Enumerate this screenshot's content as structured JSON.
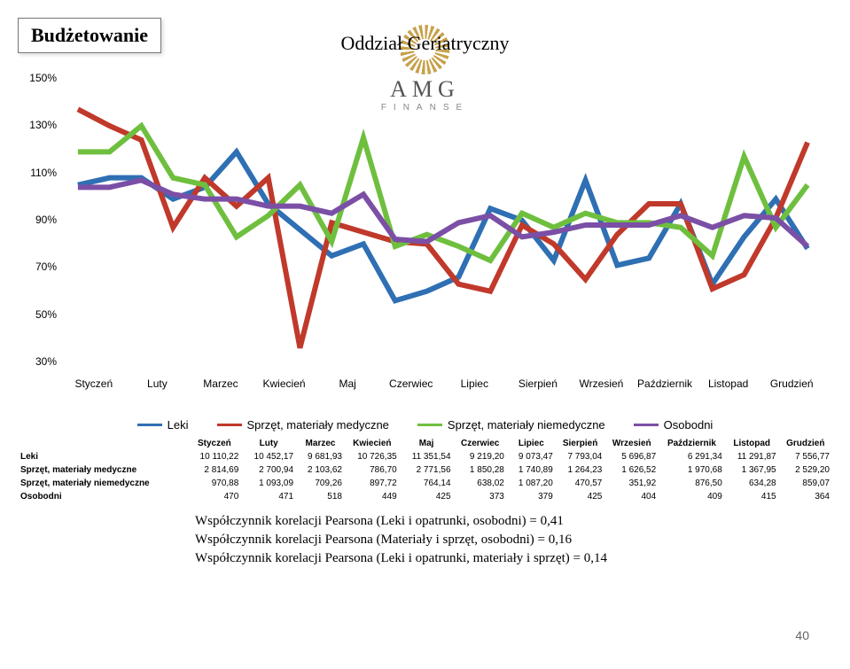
{
  "page_number": "40",
  "title": "Budżetowanie",
  "subtitle": "Oddział Geriatryczny",
  "logo": {
    "line1": "AMG",
    "line2": "FINANSE"
  },
  "chart": {
    "type": "line",
    "ylim": [
      30,
      150
    ],
    "ytick_step": 20,
    "yticks": [
      "30%",
      "50%",
      "70%",
      "90%",
      "110%",
      "130%",
      "150%"
    ],
    "line_width": 2,
    "marker": "none",
    "background_color": "#ffffff",
    "axis_fontsize": 12,
    "x_categories": [
      "Styczeń",
      "Luty",
      "Marzec",
      "Kwiecień",
      "Maj",
      "Czerwiec",
      "Lipiec",
      "Sierpień",
      "Wrzesień",
      "Październik",
      "Listopad",
      "Grudzień"
    ],
    "series": [
      {
        "key": "leki",
        "name": "Leki",
        "color": "#2f6fb3",
        "y": [
          110,
          113,
          113,
          104,
          109,
          124,
          102,
          91,
          80,
          85,
          61,
          65,
          71,
          100,
          95,
          78,
          112,
          76,
          79,
          102,
          68,
          88,
          104,
          83
        ]
      },
      {
        "key": "med",
        "name": "Sprzęt, materiały medyczne",
        "color": "#c0392b",
        "y": [
          142,
          135,
          129,
          92,
          113,
          101,
          113,
          41,
          94,
          90,
          86,
          85,
          68,
          65,
          93,
          85,
          70,
          89,
          102,
          102,
          66,
          72,
          96,
          128
        ]
      },
      {
        "key": "nonmed",
        "name": "Sprzęt, materiały niemedyczne",
        "color": "#6fbf3f",
        "y": [
          124,
          124,
          135,
          113,
          110,
          88,
          97,
          110,
          86,
          130,
          84,
          89,
          84,
          78,
          98,
          92,
          98,
          94,
          94,
          92,
          80,
          122,
          92,
          110
        ]
      },
      {
        "key": "osob",
        "name": "Osobodni",
        "color": "#7b4fa6",
        "y": [
          109,
          109,
          112,
          106,
          104,
          104,
          101,
          101,
          98,
          106,
          87,
          86,
          94,
          97,
          88,
          90,
          93,
          93,
          93,
          97,
          92,
          97,
          96,
          84
        ]
      }
    ]
  },
  "table": {
    "columns": [
      "",
      "Styczeń",
      "Luty",
      "Marzec",
      "Kwiecień",
      "Maj",
      "Czerwiec",
      "Lipiec",
      "Sierpień",
      "Wrzesień",
      "Październik",
      "Listopad",
      "Grudzień"
    ],
    "rows": [
      [
        "Leki",
        "10 110,22",
        "10 452,17",
        "9 681,93",
        "10 726,35",
        "11 351,54",
        "9 219,20",
        "9 073,47",
        "7 793,04",
        "5 696,87",
        "6 291,34",
        "11 291,87",
        "7 556,77"
      ],
      [
        "Sprzęt, materiały medyczne",
        "2 814,69",
        "2 700,94",
        "2 103,62",
        "786,70",
        "2 771,56",
        "1 850,28",
        "1 740,89",
        "1 264,23",
        "1 626,52",
        "1 970,68",
        "1 367,95",
        "2 529,20"
      ],
      [
        "Sprzęt, materiały niemedyczne",
        "970,88",
        "1 093,09",
        "709,26",
        "897,72",
        "764,14",
        "638,02",
        "1 087,20",
        "470,57",
        "351,92",
        "876,50",
        "634,28",
        "859,07"
      ],
      [
        "Osobodni",
        "470",
        "471",
        "518",
        "449",
        "425",
        "373",
        "379",
        "425",
        "404",
        "409",
        "415",
        "364"
      ]
    ]
  },
  "notes": [
    "Współczynnik korelacji Pearsona (Leki i opatrunki, osobodni) = 0,41",
    "Współczynnik korelacji Pearsona (Materiały i sprzęt, osobodni) = 0,16",
    "Współczynnik korelacji Pearsona (Leki i opatrunki, materiały i sprzęt) =  0,14"
  ]
}
